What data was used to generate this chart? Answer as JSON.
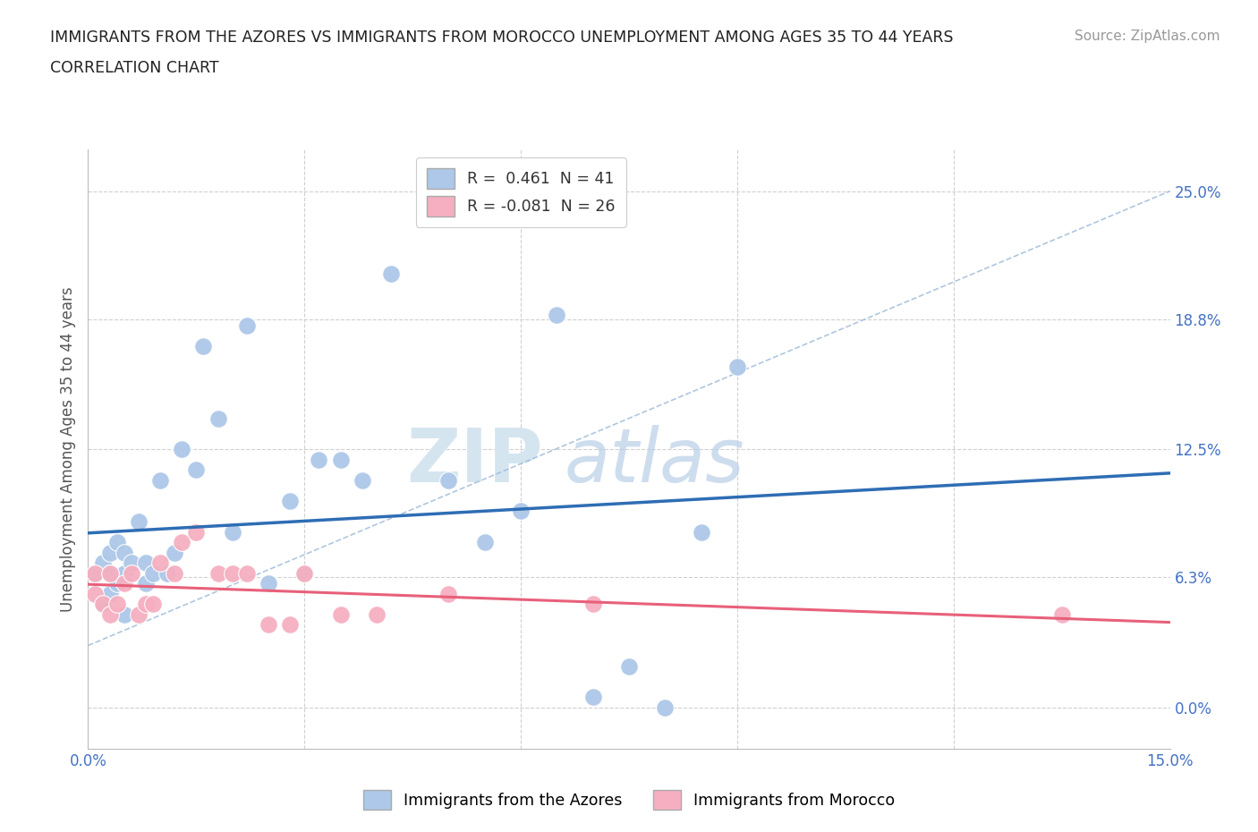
{
  "title_line1": "IMMIGRANTS FROM THE AZORES VS IMMIGRANTS FROM MOROCCO UNEMPLOYMENT AMONG AGES 35 TO 44 YEARS",
  "title_line2": "CORRELATION CHART",
  "source_text": "Source: ZipAtlas.com",
  "ylabel": "Unemployment Among Ages 35 to 44 years",
  "xlim": [
    0.0,
    0.15
  ],
  "ylim": [
    -0.02,
    0.27
  ],
  "ytick_vals": [
    0.0,
    0.063,
    0.125,
    0.188,
    0.25
  ],
  "ytick_labels_right": [
    "0.0%",
    "6.3%",
    "12.5%",
    "18.8%",
    "25.0%"
  ],
  "xtick_vals": [
    0.0,
    0.03,
    0.06,
    0.09,
    0.12,
    0.15
  ],
  "xtick_labels": [
    "0.0%",
    "",
    "",
    "",
    "",
    "15.0%"
  ],
  "R_azores": 0.461,
  "N_azores": 41,
  "R_morocco": -0.081,
  "N_morocco": 26,
  "azores_color": "#adc8e8",
  "morocco_color": "#f5afc0",
  "azores_line_color": "#2e6db4",
  "morocco_line_color": "#e8607a",
  "legend_label_azores": "Immigrants from the Azores",
  "legend_label_morocco": "Immigrants from Morocco",
  "watermark_zip": "ZIP",
  "watermark_atlas": "atlas",
  "azores_x": [
    0.001,
    0.002,
    0.002,
    0.003,
    0.003,
    0.003,
    0.004,
    0.004,
    0.005,
    0.005,
    0.005,
    0.006,
    0.007,
    0.008,
    0.008,
    0.009,
    0.01,
    0.011,
    0.012,
    0.013,
    0.015,
    0.016,
    0.018,
    0.02,
    0.022,
    0.025,
    0.028,
    0.03,
    0.032,
    0.035,
    0.038,
    0.042,
    0.05,
    0.055,
    0.06,
    0.065,
    0.07,
    0.075,
    0.08,
    0.085,
    0.09
  ],
  "azores_y": [
    0.065,
    0.05,
    0.07,
    0.055,
    0.065,
    0.075,
    0.06,
    0.08,
    0.045,
    0.065,
    0.075,
    0.07,
    0.09,
    0.06,
    0.07,
    0.065,
    0.11,
    0.065,
    0.075,
    0.125,
    0.115,
    0.175,
    0.14,
    0.085,
    0.185,
    0.06,
    0.1,
    0.065,
    0.12,
    0.12,
    0.11,
    0.21,
    0.11,
    0.08,
    0.095,
    0.19,
    0.005,
    0.02,
    0.0,
    0.085,
    0.165
  ],
  "morocco_x": [
    0.001,
    0.001,
    0.002,
    0.003,
    0.003,
    0.004,
    0.005,
    0.006,
    0.007,
    0.008,
    0.009,
    0.01,
    0.012,
    0.013,
    0.015,
    0.018,
    0.02,
    0.022,
    0.025,
    0.028,
    0.03,
    0.035,
    0.04,
    0.05,
    0.07,
    0.135
  ],
  "morocco_y": [
    0.055,
    0.065,
    0.05,
    0.045,
    0.065,
    0.05,
    0.06,
    0.065,
    0.045,
    0.05,
    0.05,
    0.07,
    0.065,
    0.08,
    0.085,
    0.065,
    0.065,
    0.065,
    0.04,
    0.04,
    0.065,
    0.045,
    0.045,
    0.055,
    0.05,
    0.045
  ],
  "diag_line_x": [
    0.0,
    0.15
  ],
  "diag_line_y": [
    0.03,
    0.25
  ]
}
